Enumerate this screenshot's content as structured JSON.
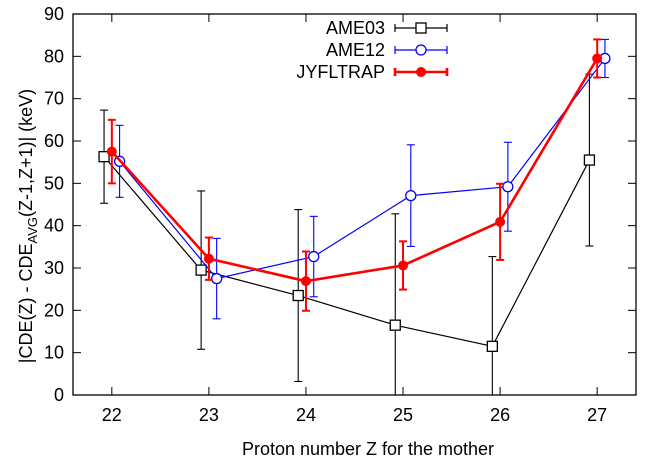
{
  "chart_data": {
    "type": "line",
    "title": "",
    "xlabel": "Proton number Z for the mother",
    "ylabel": {
      "part1": "|CDE(Z) - CDE",
      "sub": "AVG",
      "part2": "(Z-1,Z+1)| (keV)"
    },
    "xlim": [
      21.6,
      27.4
    ],
    "ylim": [
      0,
      90
    ],
    "xticks": [
      22,
      23,
      24,
      25,
      26,
      27
    ],
    "yticks": [
      0,
      10,
      20,
      30,
      40,
      50,
      60,
      70,
      80,
      90
    ],
    "grid": false,
    "legend_position": "top-center",
    "series": [
      {
        "name": "AME03",
        "color": "#000000",
        "marker": "open-square",
        "x": [
          21.92,
          22.92,
          23.92,
          24.92,
          25.92,
          26.92
        ],
        "y": [
          56.3,
          29.5,
          23.5,
          16.5,
          11.5,
          55.5
        ],
        "err": [
          11,
          18.7,
          20.3,
          26.3,
          21.2,
          20.3
        ]
      },
      {
        "name": "AME12",
        "color": "#0000ff",
        "marker": "open-circle",
        "x": [
          22.08,
          23.08,
          24.08,
          25.08,
          26.08,
          27.08
        ],
        "y": [
          55.2,
          27.5,
          32.7,
          47.1,
          49.2,
          79.5
        ],
        "err": [
          8.5,
          9.5,
          9.5,
          12,
          10.5,
          4.5
        ]
      },
      {
        "name": "JYFLTRAP",
        "color": "#ff0000",
        "marker": "filled-circle",
        "x": [
          22.0,
          23.0,
          24.0,
          25.0,
          26.0,
          27.0
        ],
        "y": [
          57.5,
          32.2,
          26.9,
          30.6,
          40.9,
          79.5
        ],
        "err": [
          7.5,
          5,
          7,
          5.7,
          9,
          4.5
        ]
      }
    ]
  }
}
